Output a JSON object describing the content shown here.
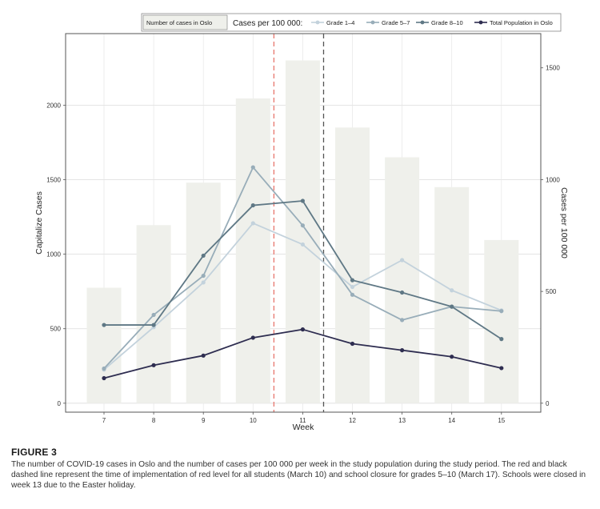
{
  "chart_data": {
    "type": "bar+line",
    "x_label": "Week",
    "y_left_label": "Capitalize Cases",
    "y_right_label": "Cases per 100 000",
    "x_ticks": [
      "7",
      "8",
      "9",
      "10",
      "11",
      "12",
      "13",
      "14",
      "15"
    ],
    "y_left_ticks": [
      "0",
      "500",
      "1000",
      "1500",
      "2000"
    ],
    "y_right_ticks": [
      "0",
      "500",
      "1000",
      "1500"
    ],
    "y_left_lim": [
      -60,
      2480
    ],
    "y_right_lim": [
      -40,
      1653
    ],
    "legend": {
      "bar_title": "Number of cases in Oslo",
      "line_title": "Cases per 100 000:",
      "placement": "top-right"
    },
    "bars": {
      "name": "Number of cases in Oslo",
      "color": "#eff0eb",
      "values": [
        775,
        1195,
        1480,
        2045,
        2300,
        1850,
        1650,
        1450,
        1095
      ]
    },
    "series": [
      {
        "name": "Grade 1–4",
        "color": "#c3d2dc",
        "values": [
          150,
          340,
          540,
          805,
          710,
          520,
          640,
          505,
          415
        ]
      },
      {
        "name": "Grade 5–7",
        "color": "#98adb9",
        "values": [
          155,
          395,
          570,
          1055,
          795,
          485,
          372,
          432,
          412
        ]
      },
      {
        "name": "Grade 8–10",
        "color": "#5f7885",
        "values": [
          350,
          350,
          660,
          885,
          905,
          550,
          495,
          432,
          287
        ]
      },
      {
        "name": "Total Population in Oslo",
        "color": "#2e2d50",
        "values": [
          112,
          170,
          213,
          293,
          330,
          266,
          237,
          208,
          157
        ]
      }
    ],
    "vlines": [
      {
        "x": 10.42,
        "color": "#e8776e",
        "style": "dashed"
      },
      {
        "x": 11.42,
        "color": "#555555",
        "style": "dashed"
      }
    ],
    "grid": true
  },
  "caption": {
    "label": "FIGURE 3",
    "text": "The number of COVID-19 cases in Oslo and the number of cases per 100 000 per week in the study population during the study period. The red and black dashed line represent the time of implementation of red level for all students (March 10) and school closure for grades 5–10 (March 17). Schools were closed in week 13 due to the Easter holiday."
  }
}
